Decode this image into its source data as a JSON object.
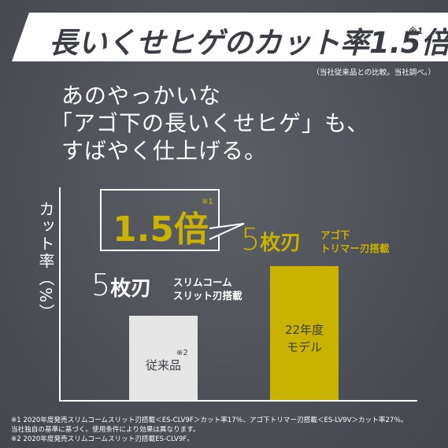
{
  "header": {
    "title": "長いくせヒゲのカット率1.5倍",
    "mark": "※1",
    "note": "（当社従来品との比較。当社調べ。）"
  },
  "headline": {
    "line1": "あのやっかいな",
    "line2": "「アゴ下の長いくせヒゲ」も、",
    "line3": "すばやく仕上げる。"
  },
  "chart_data": {
    "type": "bar",
    "ylabel": "カット率（%）",
    "categories": [
      "従来品",
      "22年度モデル"
    ],
    "values": [
      17,
      27
    ],
    "ylim": [
      0,
      35
    ],
    "callout": {
      "text": "1.5倍",
      "mark": "※1"
    },
    "bars": [
      {
        "label": "従来品",
        "mark": "※2",
        "blade_count": "5",
        "blade_kanji": "枚刃",
        "blade_desc_1": "スリムコーム",
        "blade_desc_2": "スリット刃搭載",
        "color": "#e6e6e6"
      },
      {
        "label_1": "22年度",
        "label_2": "モデル",
        "blade_count": "5",
        "blade_kanji": "枚刃",
        "blade_desc_1": "アゴ下",
        "blade_desc_2": "トリマー刃搭載",
        "color": "#c9b200"
      }
    ]
  },
  "footnotes": {
    "line1": "※1 2020年度発売スリムコームスリット刃搭載＜ES-CLV9F＞カット率17％、アゴ下トリマー刃搭載＜ES-LV9V＞カット率27％。",
    "line2": "当社独自の基準に基づく。使用条件により効果は異なります。",
    "line3": "※2 2020年度発売スリムコームスリット刃搭載ES-CLV9F。"
  }
}
